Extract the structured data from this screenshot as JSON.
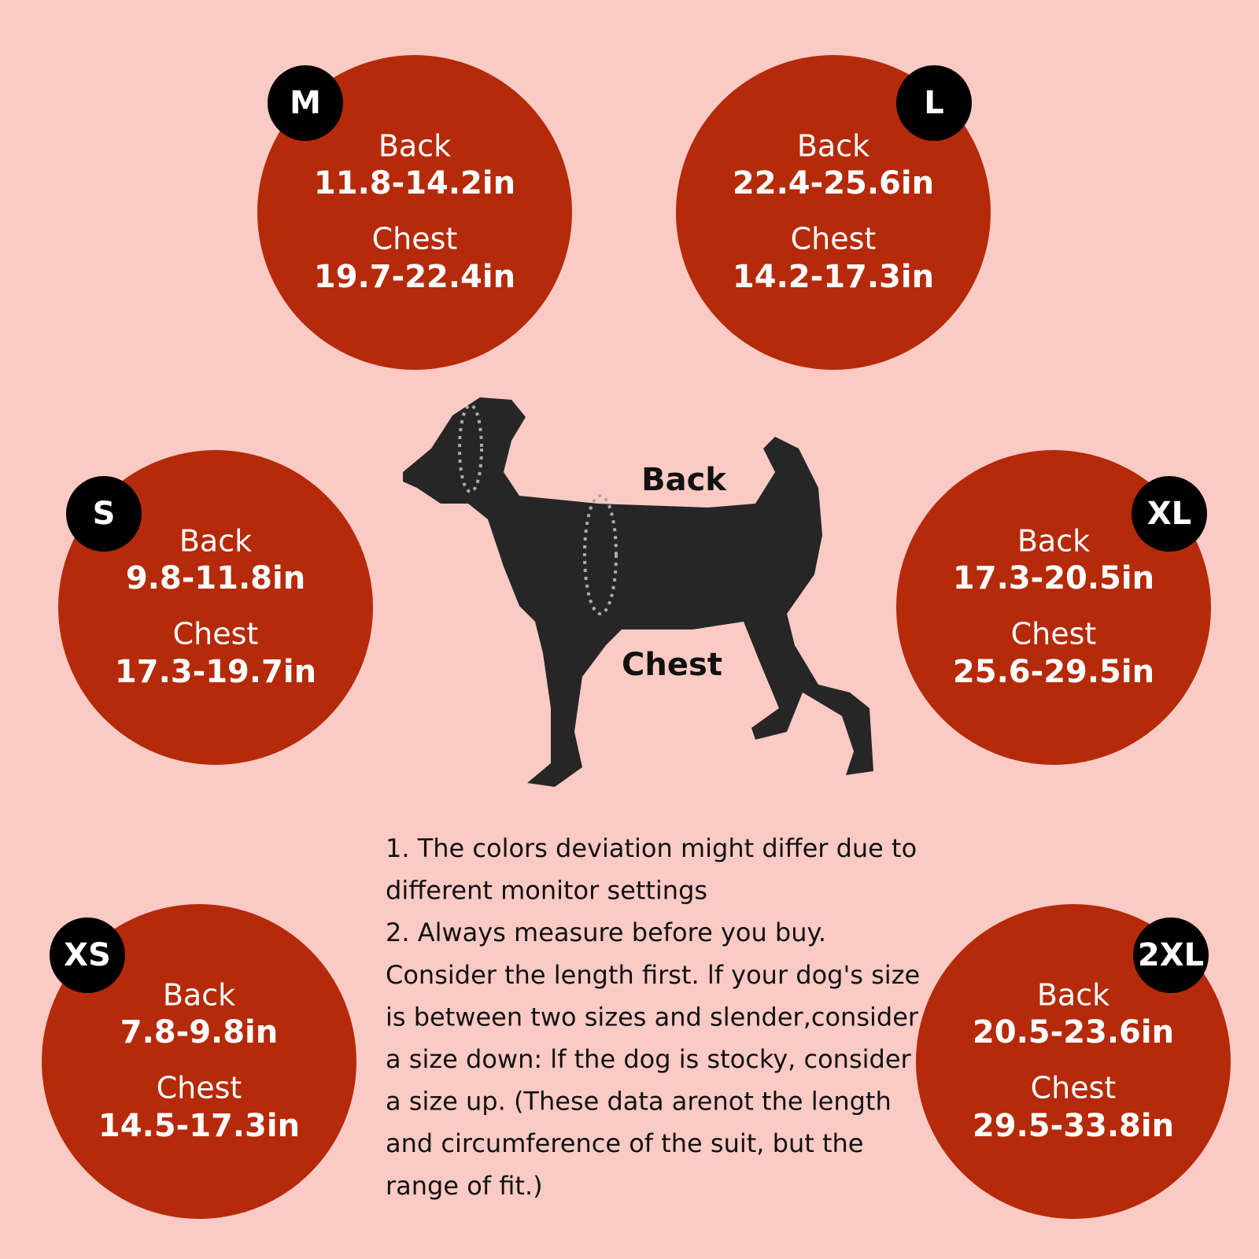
{
  "sizes": [
    {
      "size": "M",
      "back_label": "Back",
      "back": "11.8-14.2in",
      "chest_label": "Chest",
      "chest": "19.7-22.4in"
    },
    {
      "size": "L",
      "back_label": "Back",
      "back": "22.4-25.6in",
      "chest_label": "Chest",
      "chest": "14.2-17.3in"
    },
    {
      "size": "S",
      "back_label": "Back",
      "back": "9.8-11.8in",
      "chest_label": "Chest",
      "chest": "17.3-19.7in"
    },
    {
      "size": "XL",
      "back_label": "Back",
      "back": "17.3-20.5in",
      "chest_label": "Chest",
      "chest": "25.6-29.5in"
    },
    {
      "size": "XS",
      "back_label": "Back",
      "back": "7.8-9.8in",
      "chest_label": "Chest",
      "chest": "14.5-17.3in"
    },
    {
      "size": "2XL",
      "back_label": "Back",
      "back": "20.5-23.6in",
      "chest_label": "Chest",
      "chest": "29.5-33.8in"
    }
  ],
  "dog": {
    "back_label": "Back",
    "chest_label": "Chest"
  },
  "notes": [
    "1. The colors deviation might differ due to",
    "different monitor settings",
    "2. Always measure before you buy.",
    "Consider the length first. lf your dog's size",
    "is between two sizes and slender,consider",
    "a size down: lf the dog is stocky, consider",
    "a size up. (These data arenot the length",
    "and circumference of the suit, but the",
    "range of fit.)"
  ]
}
